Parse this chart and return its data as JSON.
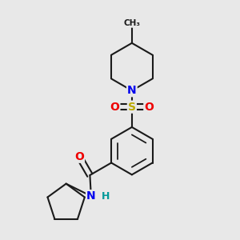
{
  "bg_color": "#e8e8e8",
  "bond_color": "#1a1a1a",
  "bond_width": 1.5,
  "atom_colors": {
    "N": "#0000ee",
    "S": "#bbaa00",
    "O": "#ee0000",
    "H": "#009999",
    "C": "#1a1a1a"
  }
}
